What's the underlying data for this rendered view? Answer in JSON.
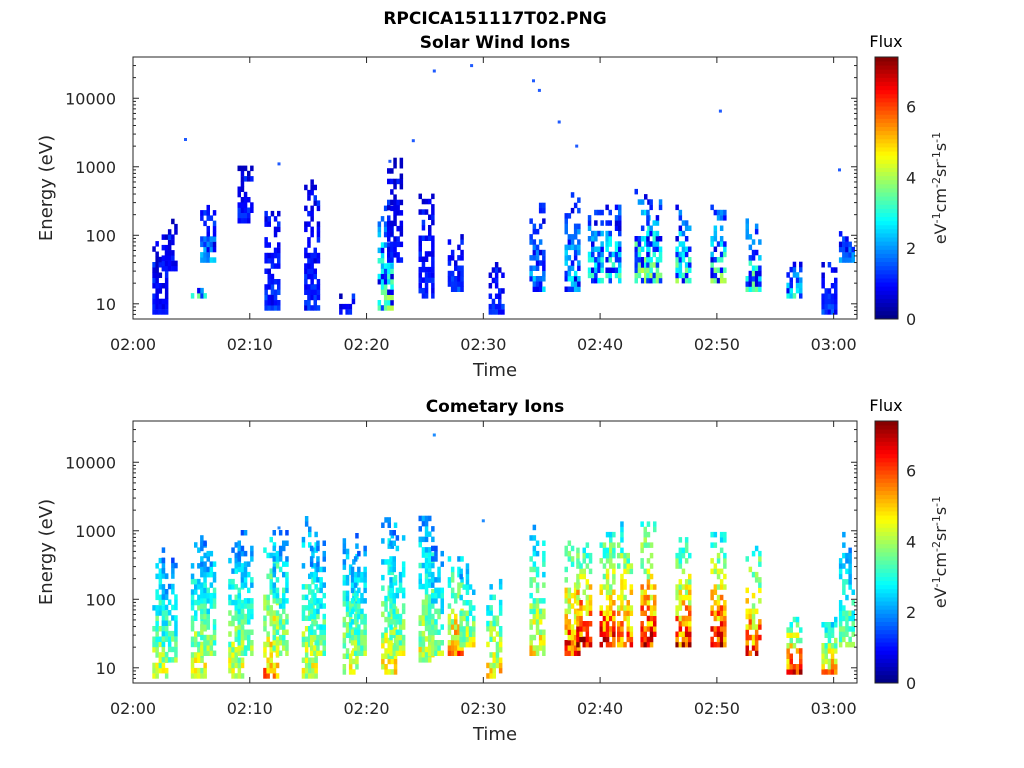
{
  "figure_title": "RPCICA151117T02.PNG",
  "chart_data": [
    {
      "type": "heatmap",
      "title": "Solar Wind Ions",
      "xlabel": "Time",
      "ylabel": "Energy (eV)",
      "yscale": "log",
      "xlim": [
        "02:00",
        "03:02"
      ],
      "ylim": [
        6,
        40000
      ],
      "x_ticks": [
        "02:00",
        "02:10",
        "02:20",
        "02:30",
        "02:40",
        "02:50",
        "03:00"
      ],
      "y_ticks": [
        "10",
        "100",
        "1000",
        "10000"
      ],
      "colorbar": {
        "title": "Flux",
        "label": "eV-1cm-2sr-1s-1",
        "label_parts": [
          "eV",
          "-1",
          "cm",
          "-2",
          "sr",
          "-1",
          "s",
          "-1"
        ],
        "range": [
          0,
          7.4
        ],
        "ticks": [
          "0",
          "2",
          "4",
          "6"
        ],
        "colormap": "jet"
      },
      "grid": false,
      "bursts": [
        {
          "t": 2.2,
          "emin": 7,
          "emax": 70,
          "level": 1.0
        },
        {
          "t": 3.0,
          "emin": 30,
          "emax": 150,
          "level": 1.0
        },
        {
          "t": 5.5,
          "emin": 12,
          "emax": 15,
          "level": 3.5
        },
        {
          "t": 6.3,
          "emin": 40,
          "emax": 250,
          "level": 2.2
        },
        {
          "t": 9.5,
          "emin": 150,
          "emax": 900,
          "level": 1.0
        },
        {
          "t": 11.8,
          "emin": 8,
          "emax": 200,
          "level": 1.5
        },
        {
          "t": 15.2,
          "emin": 8,
          "emax": 700,
          "level": 1.3
        },
        {
          "t": 18.2,
          "emin": 7,
          "emax": 12,
          "level": 1.0
        },
        {
          "t": 21.5,
          "emin": 8,
          "emax": 250,
          "level": 3.8
        },
        {
          "t": 22.3,
          "emin": 40,
          "emax": 1300,
          "level": 1.0
        },
        {
          "t": 25.0,
          "emin": 12,
          "emax": 400,
          "level": 1.2
        },
        {
          "t": 27.5,
          "emin": 15,
          "emax": 100,
          "level": 1.5
        },
        {
          "t": 31.0,
          "emin": 7,
          "emax": 40,
          "level": 1.4
        },
        {
          "t": 34.5,
          "emin": 15,
          "emax": 300,
          "level": 2.3
        },
        {
          "t": 37.5,
          "emin": 15,
          "emax": 400,
          "level": 2.8
        },
        {
          "t": 39.5,
          "emin": 20,
          "emax": 200,
          "level": 3.2
        },
        {
          "t": 41.0,
          "emin": 20,
          "emax": 300,
          "level": 3.4
        },
        {
          "t": 43.5,
          "emin": 20,
          "emax": 400,
          "level": 4.0
        },
        {
          "t": 44.5,
          "emin": 20,
          "emax": 300,
          "level": 3.8
        },
        {
          "t": 47.0,
          "emin": 20,
          "emax": 250,
          "level": 3.6
        },
        {
          "t": 50.0,
          "emin": 20,
          "emax": 250,
          "level": 3.6
        },
        {
          "t": 53.0,
          "emin": 15,
          "emax": 200,
          "level": 3.6
        },
        {
          "t": 56.5,
          "emin": 12,
          "emax": 40,
          "level": 3.2
        },
        {
          "t": 59.5,
          "emin": 7,
          "emax": 40,
          "level": 1.5
        },
        {
          "t": 61.0,
          "emin": 40,
          "emax": 100,
          "level": 2.3
        }
      ],
      "scatter_points": [
        {
          "t": 4.5,
          "e": 2500
        },
        {
          "t": 25.8,
          "e": 25000
        },
        {
          "t": 29.0,
          "e": 30000
        },
        {
          "t": 34.3,
          "e": 18000
        },
        {
          "t": 34.8,
          "e": 13000
        },
        {
          "t": 50.3,
          "e": 6500
        },
        {
          "t": 36.5,
          "e": 4500
        },
        {
          "t": 24.0,
          "e": 2400
        },
        {
          "t": 22.0,
          "e": 1200
        },
        {
          "t": 12.5,
          "e": 1100
        },
        {
          "t": 38.0,
          "e": 2000
        },
        {
          "t": 60.5,
          "e": 900
        }
      ]
    },
    {
      "type": "heatmap",
      "title": "Cometary Ions",
      "xlabel": "Time",
      "ylabel": "Energy (eV)",
      "yscale": "log",
      "xlim": [
        "02:00",
        "03:02"
      ],
      "ylim": [
        6,
        40000
      ],
      "x_ticks": [
        "02:00",
        "02:10",
        "02:20",
        "02:30",
        "02:40",
        "02:50",
        "03:00"
      ],
      "y_ticks": [
        "10",
        "100",
        "1000",
        "10000"
      ],
      "colorbar": {
        "title": "Flux",
        "label": "eV-1cm-2sr-1s-1",
        "label_parts": [
          "eV",
          "-1",
          "cm",
          "-2",
          "sr",
          "-1",
          "s",
          "-1"
        ],
        "range": [
          0,
          7.4
        ],
        "ticks": [
          "0",
          "2",
          "4",
          "6"
        ],
        "colormap": "jet"
      },
      "grid": false,
      "bursts": [
        {
          "t": 2.2,
          "emin": 7,
          "emax": 500,
          "level": 4.4
        },
        {
          "t": 3.0,
          "emin": 12,
          "emax": 400,
          "level": 3.8
        },
        {
          "t": 5.5,
          "emin": 7,
          "emax": 600,
          "level": 4.6
        },
        {
          "t": 6.3,
          "emin": 15,
          "emax": 800,
          "level": 4.0
        },
        {
          "t": 8.7,
          "emin": 7,
          "emax": 600,
          "level": 4.6
        },
        {
          "t": 9.5,
          "emin": 15,
          "emax": 900,
          "level": 4.0
        },
        {
          "t": 11.7,
          "emin": 7,
          "emax": 700,
          "level": 5.6
        },
        {
          "t": 12.5,
          "emin": 15,
          "emax": 900,
          "level": 4.2
        },
        {
          "t": 15.0,
          "emin": 7,
          "emax": 1400,
          "level": 4.6
        },
        {
          "t": 15.7,
          "emin": 15,
          "emax": 700,
          "level": 4.0
        },
        {
          "t": 18.5,
          "emin": 8,
          "emax": 800,
          "level": 4.4
        },
        {
          "t": 19.2,
          "emin": 15,
          "emax": 600,
          "level": 4.0
        },
        {
          "t": 21.8,
          "emin": 8,
          "emax": 1500,
          "level": 4.8
        },
        {
          "t": 22.5,
          "emin": 15,
          "emax": 1000,
          "level": 4.2
        },
        {
          "t": 25.0,
          "emin": 12,
          "emax": 1500,
          "level": 4.6
        },
        {
          "t": 25.8,
          "emin": 15,
          "emax": 600,
          "level": 4.0
        },
        {
          "t": 27.5,
          "emin": 15,
          "emax": 400,
          "level": 5.6
        },
        {
          "t": 28.5,
          "emin": 20,
          "emax": 300,
          "level": 4.4
        },
        {
          "t": 30.8,
          "emin": 7,
          "emax": 200,
          "level": 5.0
        },
        {
          "t": 34.5,
          "emin": 15,
          "emax": 1200,
          "level": 4.8
        },
        {
          "t": 37.5,
          "emin": 15,
          "emax": 800,
          "level": 6.4
        },
        {
          "t": 38.5,
          "emin": 20,
          "emax": 700,
          "level": 6.8
        },
        {
          "t": 40.5,
          "emin": 20,
          "emax": 900,
          "level": 6.6
        },
        {
          "t": 42.0,
          "emin": 20,
          "emax": 1200,
          "level": 6.2
        },
        {
          "t": 44.0,
          "emin": 20,
          "emax": 1200,
          "level": 6.8
        },
        {
          "t": 47.0,
          "emin": 20,
          "emax": 800,
          "level": 6.4
        },
        {
          "t": 50.0,
          "emin": 20,
          "emax": 900,
          "level": 6.6
        },
        {
          "t": 53.0,
          "emin": 15,
          "emax": 800,
          "level": 6.2
        },
        {
          "t": 56.5,
          "emin": 8,
          "emax": 50,
          "level": 6.6
        },
        {
          "t": 59.5,
          "emin": 8,
          "emax": 50,
          "level": 5.4
        },
        {
          "t": 61.0,
          "emin": 20,
          "emax": 900,
          "level": 4.0
        }
      ],
      "scatter_points": [
        {
          "t": 25.8,
          "e": 25000
        },
        {
          "t": 12.5,
          "e": 1100
        },
        {
          "t": 30.0,
          "e": 1400
        }
      ]
    }
  ]
}
